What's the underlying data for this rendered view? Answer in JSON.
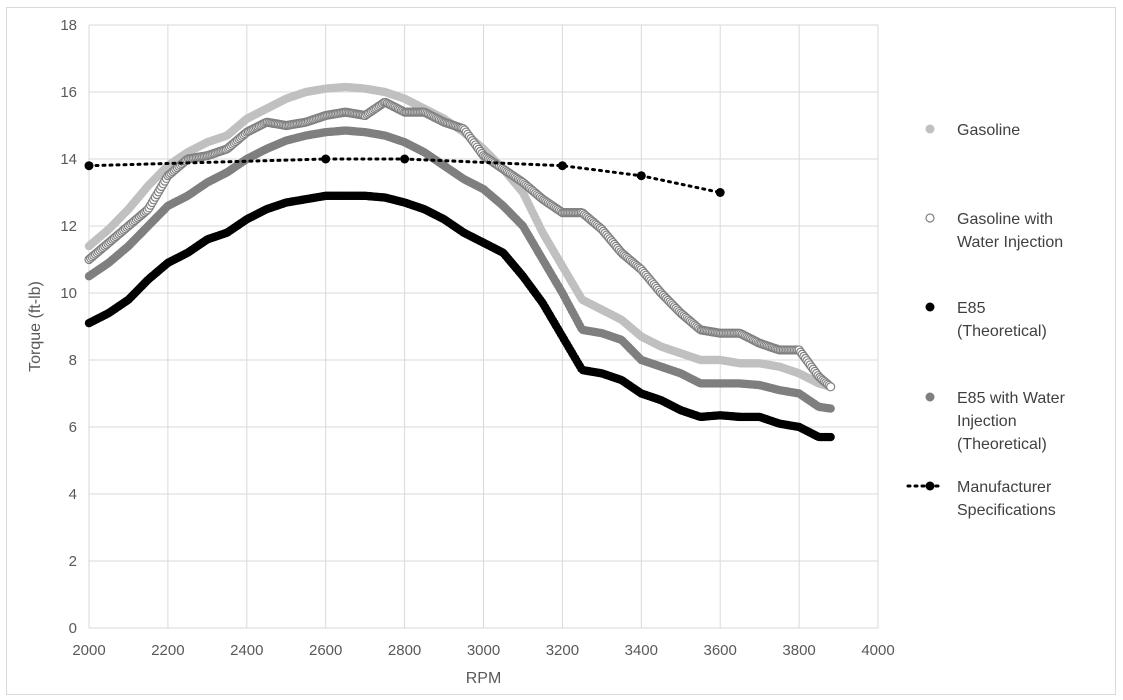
{
  "chart_data": {
    "type": "scatter",
    "xlabel": "RPM",
    "ylabel": "Torque (ft-lb)",
    "xlim": [
      2000,
      4000
    ],
    "ylim": [
      0,
      18
    ],
    "xticks": [
      "2000",
      "2200",
      "2400",
      "2600",
      "2800",
      "3000",
      "3200",
      "3400",
      "3600",
      "3800",
      "4000"
    ],
    "yticks": [
      "0",
      "2",
      "4",
      "6",
      "8",
      "10",
      "12",
      "14",
      "16",
      "18"
    ],
    "grid": "vertical and horizontal",
    "legend_position": "right",
    "series": [
      {
        "name": "Gasoline",
        "color": "#c0c0c0",
        "marker": "filled-circle",
        "points": [
          [
            2000,
            11.4
          ],
          [
            2050,
            11.9
          ],
          [
            2100,
            12.5
          ],
          [
            2150,
            13.2
          ],
          [
            2200,
            13.8
          ],
          [
            2250,
            14.2
          ],
          [
            2300,
            14.5
          ],
          [
            2350,
            14.7
          ],
          [
            2400,
            15.2
          ],
          [
            2450,
            15.5
          ],
          [
            2500,
            15.8
          ],
          [
            2550,
            16.0
          ],
          [
            2600,
            16.1
          ],
          [
            2650,
            16.15
          ],
          [
            2700,
            16.1
          ],
          [
            2750,
            16.0
          ],
          [
            2800,
            15.8
          ],
          [
            2850,
            15.5
          ],
          [
            2900,
            15.2
          ],
          [
            2950,
            14.8
          ],
          [
            3000,
            14.3
          ],
          [
            3050,
            13.7
          ],
          [
            3100,
            13.0
          ],
          [
            3150,
            11.8
          ],
          [
            3200,
            10.8
          ],
          [
            3250,
            9.8
          ],
          [
            3300,
            9.5
          ],
          [
            3350,
            9.2
          ],
          [
            3400,
            8.7
          ],
          [
            3450,
            8.4
          ],
          [
            3500,
            8.2
          ],
          [
            3550,
            8.0
          ],
          [
            3600,
            8.0
          ],
          [
            3650,
            7.9
          ],
          [
            3700,
            7.9
          ],
          [
            3750,
            7.8
          ],
          [
            3800,
            7.6
          ],
          [
            3850,
            7.3
          ],
          [
            3880,
            7.2
          ]
        ]
      },
      {
        "name": "Gasoline with Water Injection",
        "color": "#808080",
        "marker": "open-circle",
        "points": [
          [
            2000,
            11.0
          ],
          [
            2050,
            11.5
          ],
          [
            2100,
            12.0
          ],
          [
            2150,
            12.5
          ],
          [
            2200,
            13.5
          ],
          [
            2250,
            14.0
          ],
          [
            2300,
            14.1
          ],
          [
            2350,
            14.3
          ],
          [
            2400,
            14.8
          ],
          [
            2450,
            15.1
          ],
          [
            2500,
            15.0
          ],
          [
            2550,
            15.1
          ],
          [
            2600,
            15.3
          ],
          [
            2650,
            15.4
          ],
          [
            2700,
            15.3
          ],
          [
            2750,
            15.7
          ],
          [
            2800,
            15.4
          ],
          [
            2850,
            15.4
          ],
          [
            2900,
            15.1
          ],
          [
            2950,
            14.9
          ],
          [
            3000,
            14.1
          ],
          [
            3050,
            13.7
          ],
          [
            3100,
            13.3
          ],
          [
            3150,
            12.8
          ],
          [
            3200,
            12.4
          ],
          [
            3250,
            12.4
          ],
          [
            3300,
            11.9
          ],
          [
            3350,
            11.2
          ],
          [
            3400,
            10.7
          ],
          [
            3450,
            10.0
          ],
          [
            3500,
            9.4
          ],
          [
            3550,
            8.9
          ],
          [
            3600,
            8.8
          ],
          [
            3650,
            8.8
          ],
          [
            3700,
            8.5
          ],
          [
            3750,
            8.3
          ],
          [
            3800,
            8.3
          ],
          [
            3850,
            7.5
          ],
          [
            3880,
            7.2
          ]
        ]
      },
      {
        "name": "E85 (Theoretical)",
        "color": "#000000",
        "marker": "filled-circle",
        "points": [
          [
            2000,
            9.1
          ],
          [
            2050,
            9.4
          ],
          [
            2100,
            9.8
          ],
          [
            2150,
            10.4
          ],
          [
            2200,
            10.9
          ],
          [
            2250,
            11.2
          ],
          [
            2300,
            11.6
          ],
          [
            2350,
            11.8
          ],
          [
            2400,
            12.2
          ],
          [
            2450,
            12.5
          ],
          [
            2500,
            12.7
          ],
          [
            2550,
            12.8
          ],
          [
            2600,
            12.9
          ],
          [
            2650,
            12.9
          ],
          [
            2700,
            12.9
          ],
          [
            2750,
            12.85
          ],
          [
            2800,
            12.7
          ],
          [
            2850,
            12.5
          ],
          [
            2900,
            12.2
          ],
          [
            2950,
            11.8
          ],
          [
            3000,
            11.5
          ],
          [
            3050,
            11.2
          ],
          [
            3100,
            10.5
          ],
          [
            3150,
            9.7
          ],
          [
            3200,
            8.7
          ],
          [
            3250,
            7.7
          ],
          [
            3300,
            7.6
          ],
          [
            3350,
            7.4
          ],
          [
            3400,
            7.0
          ],
          [
            3450,
            6.8
          ],
          [
            3500,
            6.5
          ],
          [
            3550,
            6.3
          ],
          [
            3600,
            6.35
          ],
          [
            3650,
            6.3
          ],
          [
            3700,
            6.3
          ],
          [
            3750,
            6.1
          ],
          [
            3800,
            6.0
          ],
          [
            3850,
            5.7
          ],
          [
            3880,
            5.7
          ]
        ]
      },
      {
        "name": "E85 with Water Injection (Theoretical)",
        "color": "#7f7f7f",
        "marker": "filled-circle",
        "points": [
          [
            2000,
            10.5
          ],
          [
            2050,
            10.9
          ],
          [
            2100,
            11.4
          ],
          [
            2150,
            12.0
          ],
          [
            2200,
            12.6
          ],
          [
            2250,
            12.9
          ],
          [
            2300,
            13.3
          ],
          [
            2350,
            13.6
          ],
          [
            2400,
            14.0
          ],
          [
            2450,
            14.3
          ],
          [
            2500,
            14.55
          ],
          [
            2550,
            14.7
          ],
          [
            2600,
            14.8
          ],
          [
            2650,
            14.85
          ],
          [
            2700,
            14.8
          ],
          [
            2750,
            14.7
          ],
          [
            2800,
            14.5
          ],
          [
            2850,
            14.2
          ],
          [
            2900,
            13.8
          ],
          [
            2950,
            13.4
          ],
          [
            3000,
            13.1
          ],
          [
            3050,
            12.6
          ],
          [
            3100,
            12.0
          ],
          [
            3150,
            11.0
          ],
          [
            3200,
            10.0
          ],
          [
            3250,
            8.9
          ],
          [
            3300,
            8.8
          ],
          [
            3350,
            8.6
          ],
          [
            3400,
            8.0
          ],
          [
            3450,
            7.8
          ],
          [
            3500,
            7.6
          ],
          [
            3550,
            7.3
          ],
          [
            3600,
            7.3
          ],
          [
            3650,
            7.3
          ],
          [
            3700,
            7.25
          ],
          [
            3750,
            7.1
          ],
          [
            3800,
            7.0
          ],
          [
            3850,
            6.6
          ],
          [
            3880,
            6.55
          ]
        ]
      },
      {
        "name": "Manufacturer Specifications",
        "color": "#000000",
        "marker": "dotted-line-with-markers",
        "points": [
          [
            2000,
            13.8
          ],
          [
            2600,
            14.0
          ],
          [
            2800,
            14.0
          ],
          [
            3200,
            13.8
          ],
          [
            3400,
            13.5
          ],
          [
            3600,
            13.0
          ]
        ]
      }
    ],
    "legend": [
      {
        "lines": [
          "Gasoline"
        ]
      },
      {
        "lines": [
          "Gasoline with",
          "Water Injection"
        ]
      },
      {
        "lines": [
          "E85",
          "(Theoretical)"
        ]
      },
      {
        "lines": [
          "E85 with Water",
          "Injection",
          "(Theoretical)"
        ]
      },
      {
        "lines": [
          "Manufacturer",
          "Specifications"
        ]
      }
    ]
  }
}
